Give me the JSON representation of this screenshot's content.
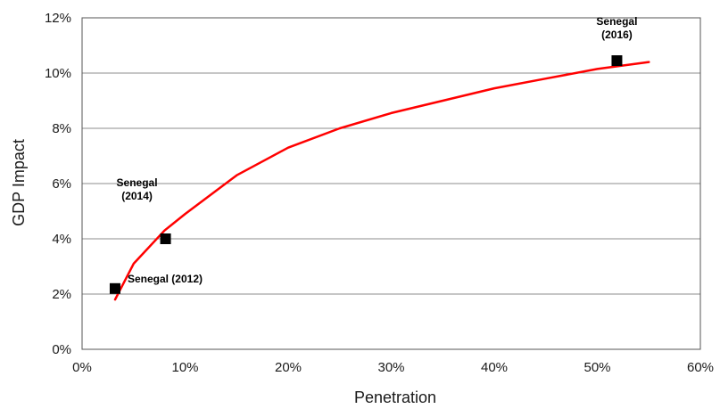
{
  "chart_data": {
    "type": "scatter",
    "xlabel": "Penetration",
    "ylabel": "GDP Impact",
    "xlim": [
      0,
      60
    ],
    "ylim": [
      0,
      12
    ],
    "x_ticks": [
      "0%",
      "10%",
      "20%",
      "30%",
      "40%",
      "50%",
      "60%"
    ],
    "y_ticks": [
      "0%",
      "2%",
      "4%",
      "6%",
      "8%",
      "10%",
      "12%"
    ],
    "grid": "horizontal",
    "legend": "none",
    "series": [
      {
        "type": "scatter",
        "marker": "square",
        "color": "#000000",
        "points": [
          {
            "x": 3.2,
            "y": 2.2
          },
          {
            "x": 8.1,
            "y": 4.0
          },
          {
            "x": 51.9,
            "y": 10.45
          }
        ]
      },
      {
        "type": "line",
        "color": "#ff0000",
        "points": [
          {
            "x": 3.2,
            "y": 1.8
          },
          {
            "x": 5,
            "y": 3.1
          },
          {
            "x": 8,
            "y": 4.3
          },
          {
            "x": 10,
            "y": 4.9
          },
          {
            "x": 15,
            "y": 6.3
          },
          {
            "x": 20,
            "y": 7.3
          },
          {
            "x": 25,
            "y": 8.0
          },
          {
            "x": 30,
            "y": 8.55
          },
          {
            "x": 35,
            "y": 9.0
          },
          {
            "x": 40,
            "y": 9.45
          },
          {
            "x": 45,
            "y": 9.8
          },
          {
            "x": 50,
            "y": 10.15
          },
          {
            "x": 55,
            "y": 10.4
          }
        ]
      }
    ],
    "annotations": [
      {
        "lines": [
          "Senegal (2012)"
        ],
        "x": 3.2,
        "y": 2.2
      },
      {
        "lines": [
          "Senegal",
          "(2014)"
        ],
        "x": 8.1,
        "y": 4.0
      },
      {
        "lines": [
          "Senegal",
          "(2016)"
        ],
        "x": 51.9,
        "y": 10.45
      }
    ]
  }
}
